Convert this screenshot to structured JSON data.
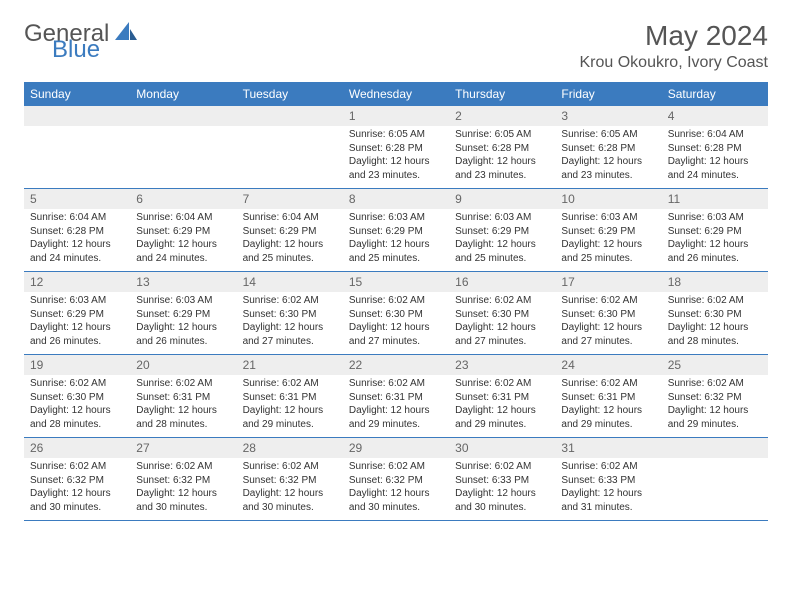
{
  "logo": {
    "general": "General",
    "blue": "Blue"
  },
  "monthTitle": "May 2024",
  "location": "Krou Okoukro, Ivory Coast",
  "colors": {
    "headerBg": "#3b7bbf",
    "headerText": "#ffffff",
    "dayNumBg": "#eeeeee",
    "dayNumText": "#666666",
    "bodyText": "#333333",
    "pageBg": "#ffffff",
    "rowBorder": "#3b7bbf"
  },
  "typography": {
    "monthTitleSize": 28,
    "locationSize": 16,
    "dayHeaderSize": 12,
    "dayNumSize": 12,
    "bodySize": 10
  },
  "dayHeaders": [
    "Sunday",
    "Monday",
    "Tuesday",
    "Wednesday",
    "Thursday",
    "Friday",
    "Saturday"
  ],
  "weeks": [
    [
      null,
      null,
      null,
      {
        "n": "1",
        "sr": "6:05 AM",
        "ss": "6:28 PM",
        "dl": "12 hours and 23 minutes."
      },
      {
        "n": "2",
        "sr": "6:05 AM",
        "ss": "6:28 PM",
        "dl": "12 hours and 23 minutes."
      },
      {
        "n": "3",
        "sr": "6:05 AM",
        "ss": "6:28 PM",
        "dl": "12 hours and 23 minutes."
      },
      {
        "n": "4",
        "sr": "6:04 AM",
        "ss": "6:28 PM",
        "dl": "12 hours and 24 minutes."
      }
    ],
    [
      {
        "n": "5",
        "sr": "6:04 AM",
        "ss": "6:28 PM",
        "dl": "12 hours and 24 minutes."
      },
      {
        "n": "6",
        "sr": "6:04 AM",
        "ss": "6:29 PM",
        "dl": "12 hours and 24 minutes."
      },
      {
        "n": "7",
        "sr": "6:04 AM",
        "ss": "6:29 PM",
        "dl": "12 hours and 25 minutes."
      },
      {
        "n": "8",
        "sr": "6:03 AM",
        "ss": "6:29 PM",
        "dl": "12 hours and 25 minutes."
      },
      {
        "n": "9",
        "sr": "6:03 AM",
        "ss": "6:29 PM",
        "dl": "12 hours and 25 minutes."
      },
      {
        "n": "10",
        "sr": "6:03 AM",
        "ss": "6:29 PM",
        "dl": "12 hours and 25 minutes."
      },
      {
        "n": "11",
        "sr": "6:03 AM",
        "ss": "6:29 PM",
        "dl": "12 hours and 26 minutes."
      }
    ],
    [
      {
        "n": "12",
        "sr": "6:03 AM",
        "ss": "6:29 PM",
        "dl": "12 hours and 26 minutes."
      },
      {
        "n": "13",
        "sr": "6:03 AM",
        "ss": "6:29 PM",
        "dl": "12 hours and 26 minutes."
      },
      {
        "n": "14",
        "sr": "6:02 AM",
        "ss": "6:30 PM",
        "dl": "12 hours and 27 minutes."
      },
      {
        "n": "15",
        "sr": "6:02 AM",
        "ss": "6:30 PM",
        "dl": "12 hours and 27 minutes."
      },
      {
        "n": "16",
        "sr": "6:02 AM",
        "ss": "6:30 PM",
        "dl": "12 hours and 27 minutes."
      },
      {
        "n": "17",
        "sr": "6:02 AM",
        "ss": "6:30 PM",
        "dl": "12 hours and 27 minutes."
      },
      {
        "n": "18",
        "sr": "6:02 AM",
        "ss": "6:30 PM",
        "dl": "12 hours and 28 minutes."
      }
    ],
    [
      {
        "n": "19",
        "sr": "6:02 AM",
        "ss": "6:30 PM",
        "dl": "12 hours and 28 minutes."
      },
      {
        "n": "20",
        "sr": "6:02 AM",
        "ss": "6:31 PM",
        "dl": "12 hours and 28 minutes."
      },
      {
        "n": "21",
        "sr": "6:02 AM",
        "ss": "6:31 PM",
        "dl": "12 hours and 29 minutes."
      },
      {
        "n": "22",
        "sr": "6:02 AM",
        "ss": "6:31 PM",
        "dl": "12 hours and 29 minutes."
      },
      {
        "n": "23",
        "sr": "6:02 AM",
        "ss": "6:31 PM",
        "dl": "12 hours and 29 minutes."
      },
      {
        "n": "24",
        "sr": "6:02 AM",
        "ss": "6:31 PM",
        "dl": "12 hours and 29 minutes."
      },
      {
        "n": "25",
        "sr": "6:02 AM",
        "ss": "6:32 PM",
        "dl": "12 hours and 29 minutes."
      }
    ],
    [
      {
        "n": "26",
        "sr": "6:02 AM",
        "ss": "6:32 PM",
        "dl": "12 hours and 30 minutes."
      },
      {
        "n": "27",
        "sr": "6:02 AM",
        "ss": "6:32 PM",
        "dl": "12 hours and 30 minutes."
      },
      {
        "n": "28",
        "sr": "6:02 AM",
        "ss": "6:32 PM",
        "dl": "12 hours and 30 minutes."
      },
      {
        "n": "29",
        "sr": "6:02 AM",
        "ss": "6:32 PM",
        "dl": "12 hours and 30 minutes."
      },
      {
        "n": "30",
        "sr": "6:02 AM",
        "ss": "6:33 PM",
        "dl": "12 hours and 30 minutes."
      },
      {
        "n": "31",
        "sr": "6:02 AM",
        "ss": "6:33 PM",
        "dl": "12 hours and 31 minutes."
      },
      null
    ]
  ],
  "labels": {
    "sunrise": "Sunrise:",
    "sunset": "Sunset:",
    "daylight": "Daylight:"
  }
}
